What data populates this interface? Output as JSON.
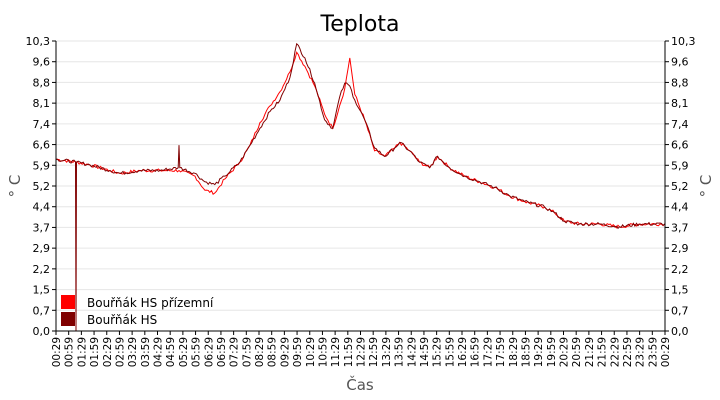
{
  "chart_data": {
    "type": "line",
    "title": "Teplota",
    "xlabel": "Čas",
    "ylabel": "° C",
    "ylabel_right": "° C",
    "ylim": [
      0,
      10.3
    ],
    "xlim_hours": [
      0.483,
      24.483
    ],
    "grid": true,
    "legend_placement": "bottom-left",
    "y_ticks": [
      "0,0",
      "0,7",
      "1,5",
      "2,2",
      "2,9",
      "3,7",
      "4,4",
      "5,2",
      "5,9",
      "6,6",
      "7,4",
      "8,1",
      "8,8",
      "9,6",
      "10,3"
    ],
    "x_ticks": [
      "00:29",
      "00:59",
      "01:29",
      "01:59",
      "02:29",
      "02:59",
      "03:29",
      "03:59",
      "04:29",
      "04:59",
      "05:29",
      "05:59",
      "06:29",
      "06:59",
      "07:29",
      "07:59",
      "08:29",
      "08:59",
      "09:29",
      "09:59",
      "10:29",
      "10:59",
      "11:29",
      "11:59",
      "12:29",
      "12:59",
      "13:29",
      "13:59",
      "14:29",
      "14:59",
      "15:29",
      "15:59",
      "16:29",
      "16:59",
      "17:29",
      "17:59",
      "18:29",
      "18:59",
      "19:29",
      "19:59",
      "20:29",
      "20:59",
      "21:29",
      "21:59",
      "22:29",
      "22:59",
      "23:29",
      "23:59",
      "00:29"
    ],
    "series": [
      {
        "name": "Bouřňák HS přízemní",
        "color": "#ff0000",
        "x": [
          0.48,
          1.27,
          1.82,
          2.61,
          3.0,
          3.8,
          4.58,
          5.33,
          5.96,
          6.35,
          6.74,
          7.14,
          7.73,
          8.13,
          8.52,
          8.92,
          9.31,
          9.7,
          9.97,
          10.29,
          10.68,
          11.07,
          11.39,
          11.66,
          11.86,
          12.06,
          12.26,
          12.65,
          13.04,
          13.44,
          13.83,
          14.03,
          14.42,
          14.81,
          15.21,
          15.52,
          15.99,
          16.59,
          17.18,
          17.77,
          18.36,
          18.95,
          19.74,
          20.13,
          20.52,
          21.11,
          21.9,
          22.69,
          23.48,
          24.47
        ],
        "y": [
          6.1,
          6.0,
          5.9,
          5.7,
          5.6,
          5.7,
          5.7,
          5.7,
          5.5,
          5.0,
          4.9,
          5.4,
          6.0,
          6.6,
          7.4,
          8.0,
          8.5,
          9.2,
          9.9,
          9.4,
          8.7,
          7.7,
          7.2,
          8.0,
          8.6,
          9.7,
          8.4,
          7.5,
          6.4,
          6.2,
          6.5,
          6.7,
          6.4,
          6.0,
          5.8,
          6.2,
          5.8,
          5.5,
          5.3,
          5.1,
          4.8,
          4.6,
          4.4,
          4.2,
          3.9,
          3.8,
          3.8,
          3.7,
          3.8,
          3.8
        ]
      },
      {
        "name": "Bouřňák HS",
        "color": "#800000",
        "x": [
          0.48,
          1.25,
          1.27,
          1.29,
          1.82,
          2.61,
          3.0,
          3.8,
          4.58,
          5.3,
          5.33,
          5.36,
          5.96,
          6.35,
          6.74,
          7.14,
          7.73,
          8.13,
          8.52,
          8.92,
          9.31,
          9.7,
          9.97,
          10.29,
          10.68,
          11.07,
          11.39,
          11.66,
          11.86,
          12.06,
          12.26,
          12.65,
          13.04,
          13.44,
          13.83,
          14.03,
          14.42,
          14.81,
          15.21,
          15.52,
          15.99,
          16.59,
          17.18,
          17.77,
          18.36,
          18.95,
          19.74,
          20.13,
          20.52,
          21.11,
          21.9,
          22.69,
          23.48,
          24.47
        ],
        "y": [
          6.1,
          6.0,
          0.0,
          6.0,
          5.9,
          5.7,
          5.6,
          5.7,
          5.7,
          5.8,
          6.6,
          5.8,
          5.6,
          5.3,
          5.2,
          5.5,
          6.0,
          6.6,
          7.2,
          7.8,
          8.2,
          9.0,
          10.2,
          9.7,
          8.8,
          7.5,
          7.2,
          8.3,
          8.8,
          8.7,
          8.2,
          7.5,
          6.5,
          6.2,
          6.5,
          6.7,
          6.4,
          6.0,
          5.8,
          6.2,
          5.8,
          5.5,
          5.3,
          5.1,
          4.8,
          4.6,
          4.4,
          4.2,
          3.9,
          3.8,
          3.8,
          3.7,
          3.8,
          3.8
        ]
      }
    ]
  }
}
